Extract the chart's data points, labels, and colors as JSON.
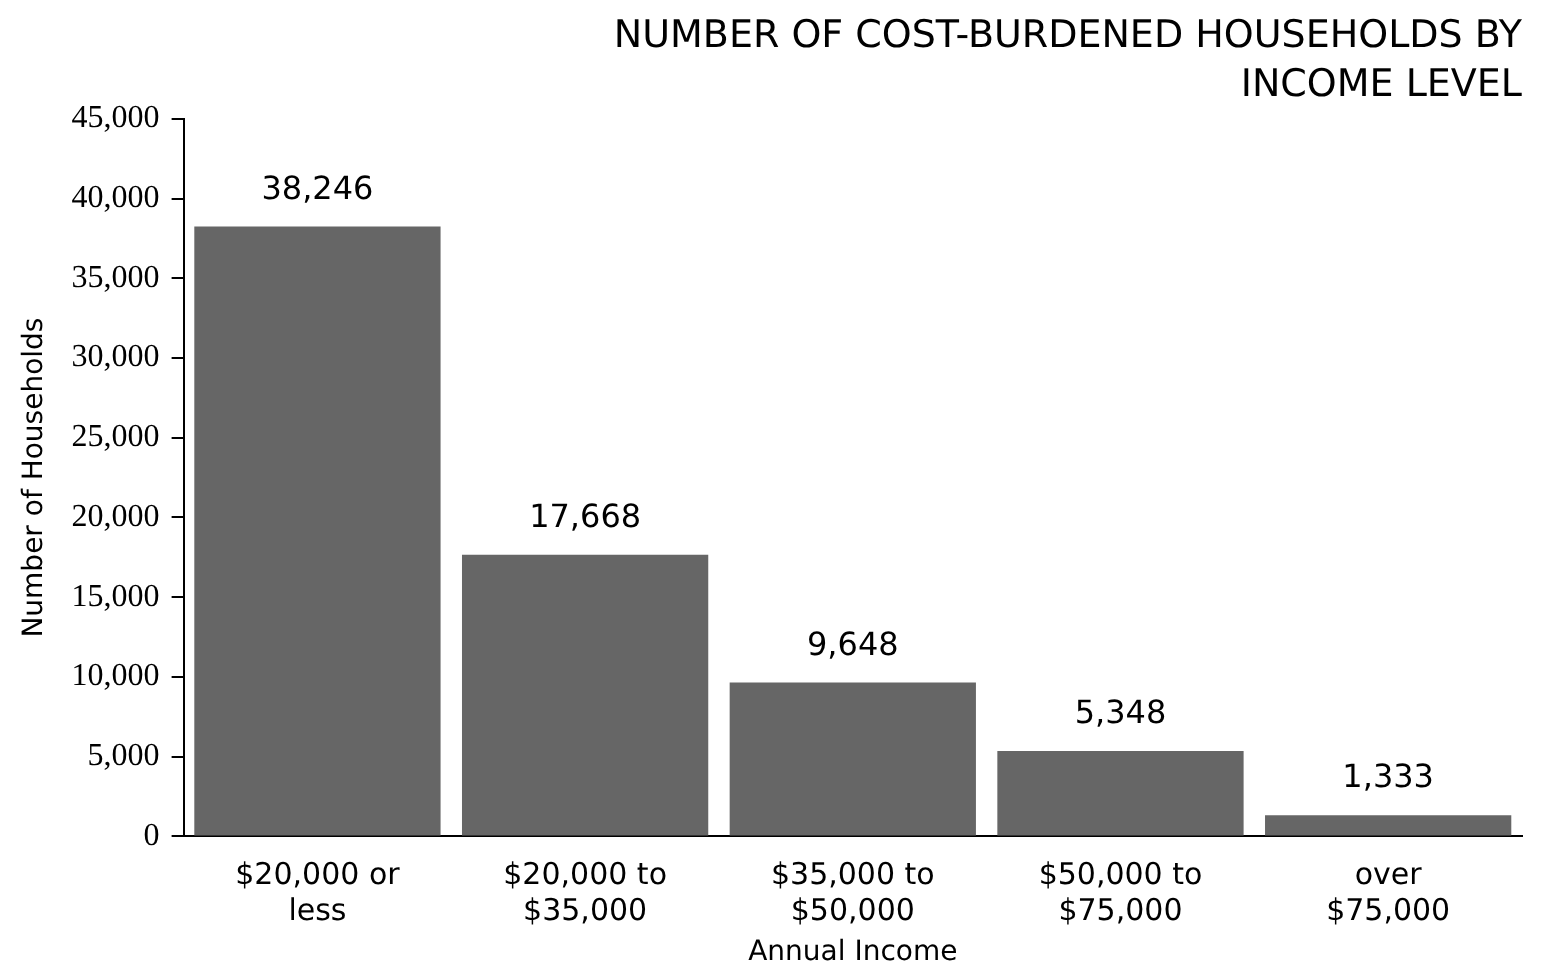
{
  "chart_data": {
    "type": "bar",
    "title": "NUMBER OF COST-BURDENED HOUSEHOLDS BY INCOME LEVEL",
    "xlabel": "Annual Income",
    "ylabel": "Number of Households",
    "categories": [
      "$20,000 or less",
      "$20,000 to $35,000",
      "$35,000 to $50,000",
      "$50,000 to $75,000",
      "over $75,000"
    ],
    "values": [
      38246,
      17668,
      9648,
      5348,
      1333
    ],
    "color": "#666666",
    "value_labels": [
      "38,246",
      "17,668",
      "9,648",
      "5,348",
      "1,333"
    ],
    "ylim": [
      0,
      45000
    ],
    "yticks": [
      0,
      {
        "value": 5000,
        "label": "5,000"
      },
      {
        "value": 10000,
        "label": "10,000"
      },
      {
        "value": 15000,
        "label": "15,000"
      },
      {
        "value": 20000,
        "label": "20,000"
      },
      {
        "value": 25000,
        "label": "25,000"
      },
      {
        "value": 30000,
        "label": "30,000"
      },
      {
        "value": 35000,
        "label": "35,000"
      },
      {
        "value": 40000,
        "label": "40,000"
      },
      {
        "value": 45000,
        "label": "45,000"
      }
    ],
    "grid": false,
    "legend": false
  }
}
